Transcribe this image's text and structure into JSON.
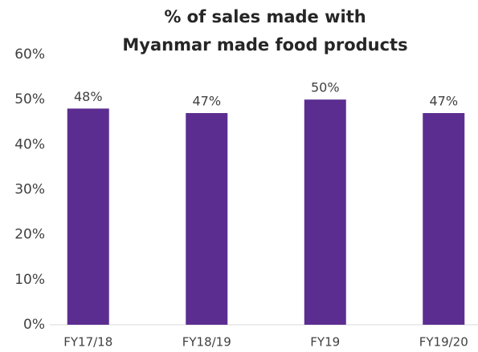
{
  "chart_data": {
    "type": "bar",
    "title": [
      "% of sales made with",
      "Myanmar made food products"
    ],
    "categories": [
      "FY17/18",
      "FY18/19",
      "FY19",
      "FY19/20"
    ],
    "values": [
      48,
      47,
      50,
      47
    ],
    "value_labels": [
      "48%",
      "47%",
      "50%",
      "47%"
    ],
    "color": "#5c2d91",
    "ylim": [
      0,
      60
    ],
    "yticks": [
      {
        "value": 0,
        "label": "0%"
      },
      {
        "value": 10,
        "label": "10%"
      },
      {
        "value": 20,
        "label": "20%"
      },
      {
        "value": 30,
        "label": "30%"
      },
      {
        "value": 40,
        "label": "40%"
      },
      {
        "value": 50,
        "label": "50%"
      },
      {
        "value": 60,
        "label": "60%"
      }
    ],
    "grid": false
  }
}
